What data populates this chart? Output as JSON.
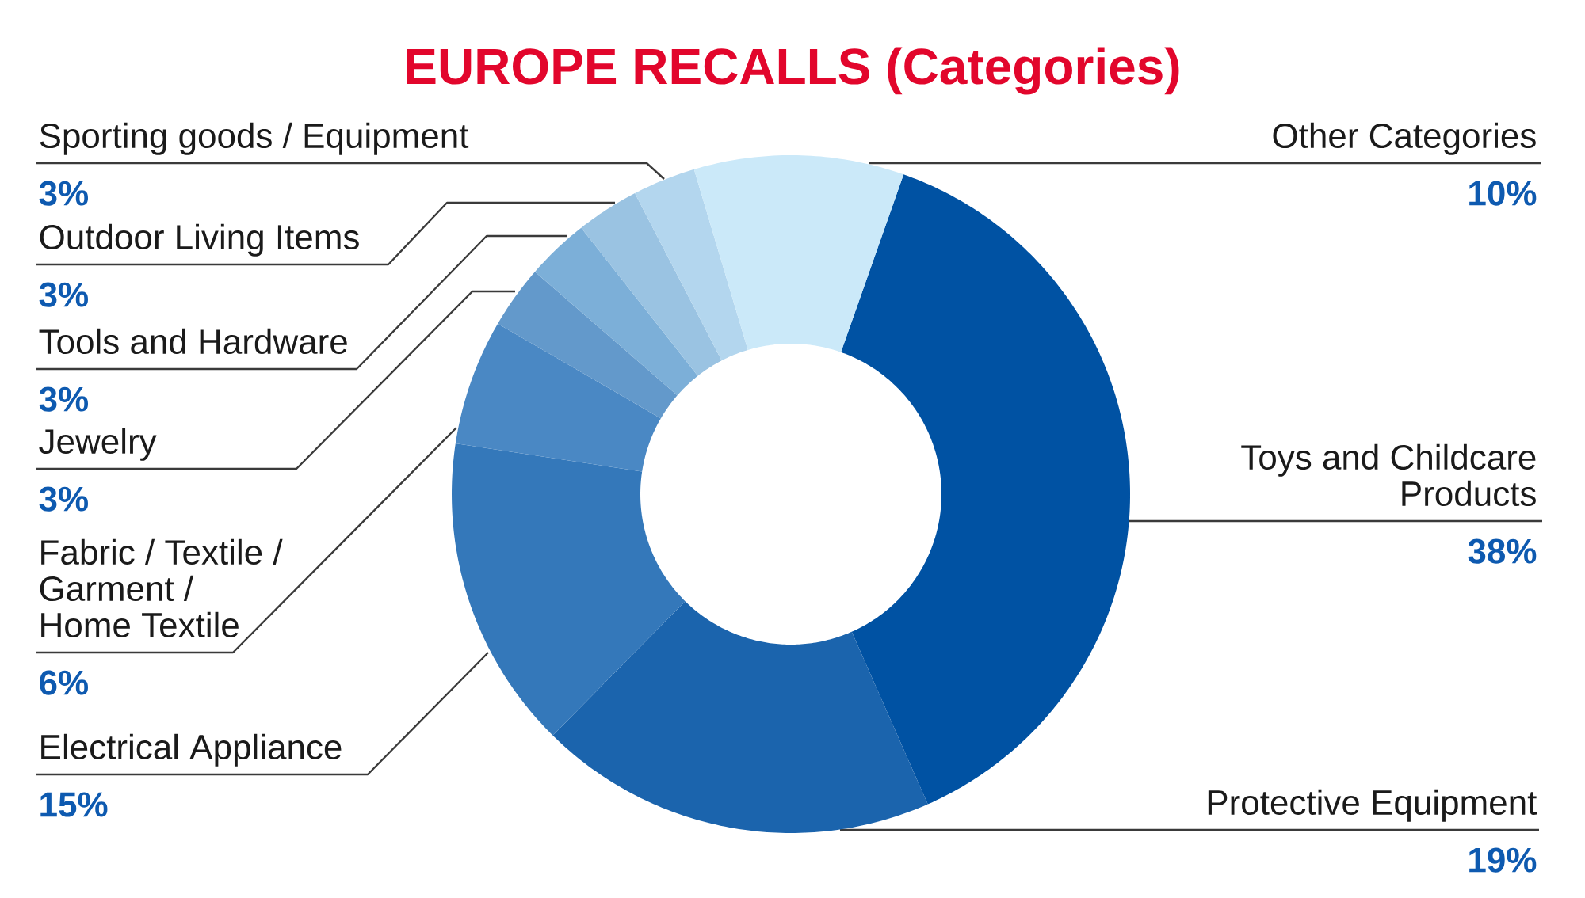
{
  "chart_data": {
    "type": "donut",
    "title": "EUROPE RECALLS (Categories)",
    "categories": [
      "Toys and Childcare Products",
      "Protective Equipment",
      "Electrical Appliance",
      "Fabric / Textile / Garment / Home Textile",
      "Jewelry",
      "Tools and Hardware",
      "Outdoor Living Items",
      "Sporting goods / Equipment",
      "Other Categories"
    ],
    "values": [
      38,
      19,
      15,
      6,
      3,
      3,
      3,
      3,
      10
    ],
    "colors": [
      "#0052a3",
      "#1b64ad",
      "#3478ba",
      "#4a88c4",
      "#6399cb",
      "#7cafd8",
      "#9ac3e2",
      "#b3d6ee",
      "#cbe9f9"
    ],
    "value_labels": [
      "38%",
      "19%",
      "15%",
      "6%",
      "3%",
      "3%",
      "3%",
      "3%",
      "10%"
    ]
  }
}
